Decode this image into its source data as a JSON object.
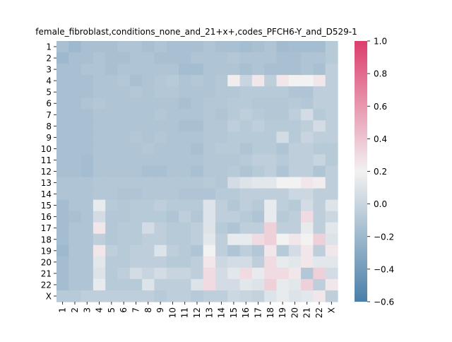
{
  "chart_data": {
    "type": "heatmap",
    "title": "female_fibroblast,conditions_none_and_21+x+,codes_PFCH6-Y_and_D529-1",
    "xlabel": "",
    "ylabel": "",
    "x_categories": [
      "1",
      "2",
      "3",
      "4",
      "5",
      "6",
      "7",
      "8",
      "9",
      "10",
      "11",
      "12",
      "13",
      "14",
      "15",
      "16",
      "17",
      "18",
      "19",
      "20",
      "21",
      "22",
      "X"
    ],
    "y_categories": [
      "1",
      "2",
      "3",
      "4",
      "5",
      "6",
      "7",
      "8",
      "9",
      "10",
      "11",
      "12",
      "13",
      "14",
      "15",
      "16",
      "17",
      "18",
      "19",
      "20",
      "21",
      "22",
      "X"
    ],
    "colorbar": {
      "vmin": -0.6,
      "vmax": 1.0,
      "ticks": [
        1.0,
        0.8,
        0.6,
        0.4,
        0.2,
        0.0,
        -0.2,
        -0.4,
        -0.6
      ],
      "colormap": "diverging blue-white-red",
      "colors": {
        "low": "#4a7fa8",
        "mid": "#f2f2f2",
        "high": "#dc3d6c"
      }
    },
    "values": [
      [
        -0.15,
        -0.2,
        -0.15,
        -0.15,
        -0.15,
        -0.12,
        -0.12,
        -0.15,
        -0.12,
        -0.15,
        -0.15,
        -0.15,
        -0.12,
        -0.15,
        -0.15,
        -0.17,
        -0.15,
        -0.12,
        -0.18,
        -0.17,
        -0.17,
        -0.17,
        -0.08
      ],
      [
        -0.2,
        -0.15,
        -0.15,
        -0.12,
        -0.15,
        -0.15,
        -0.12,
        -0.12,
        -0.15,
        -0.15,
        -0.15,
        -0.12,
        -0.12,
        -0.12,
        -0.1,
        -0.12,
        -0.12,
        -0.12,
        -0.15,
        -0.15,
        -0.12,
        -0.12,
        -0.08
      ],
      [
        -0.15,
        -0.15,
        -0.12,
        -0.12,
        -0.15,
        -0.12,
        -0.12,
        -0.12,
        -0.12,
        -0.12,
        -0.17,
        -0.17,
        -0.12,
        -0.12,
        -0.12,
        -0.15,
        -0.12,
        -0.15,
        -0.15,
        -0.15,
        -0.12,
        -0.15,
        -0.05
      ],
      [
        -0.15,
        -0.15,
        -0.15,
        -0.12,
        -0.12,
        -0.1,
        -0.15,
        -0.12,
        -0.1,
        -0.08,
        -0.12,
        -0.1,
        -0.12,
        -0.1,
        0.22,
        0.0,
        0.25,
        -0.05,
        0.25,
        0.2,
        0.2,
        0.25,
        -0.05
      ],
      [
        -0.15,
        -0.15,
        -0.15,
        -0.12,
        -0.12,
        -0.12,
        -0.1,
        -0.12,
        -0.1,
        -0.1,
        -0.12,
        -0.12,
        -0.12,
        -0.1,
        -0.1,
        -0.08,
        -0.08,
        -0.08,
        -0.08,
        -0.12,
        -0.12,
        -0.05,
        -0.05
      ],
      [
        -0.15,
        -0.15,
        -0.12,
        -0.1,
        -0.12,
        -0.12,
        -0.12,
        -0.12,
        -0.12,
        -0.12,
        -0.15,
        -0.12,
        -0.1,
        -0.1,
        -0.08,
        -0.08,
        -0.1,
        -0.1,
        -0.1,
        -0.08,
        -0.1,
        -0.05,
        -0.05
      ],
      [
        -0.15,
        -0.15,
        -0.15,
        -0.12,
        -0.12,
        -0.12,
        -0.12,
        -0.12,
        -0.1,
        -0.12,
        -0.12,
        -0.12,
        -0.1,
        -0.12,
        -0.08,
        -0.05,
        -0.08,
        -0.1,
        -0.1,
        -0.05,
        0.05,
        -0.08,
        -0.05
      ],
      [
        -0.15,
        -0.15,
        -0.15,
        -0.12,
        -0.12,
        -0.12,
        -0.12,
        -0.12,
        -0.12,
        -0.12,
        -0.15,
        -0.15,
        -0.1,
        -0.1,
        -0.05,
        -0.08,
        -0.05,
        -0.08,
        -0.08,
        -0.08,
        -0.05,
        0.05,
        -0.05
      ],
      [
        -0.15,
        -0.15,
        -0.15,
        -0.12,
        -0.12,
        -0.12,
        -0.1,
        -0.12,
        -0.1,
        -0.12,
        -0.12,
        -0.12,
        -0.1,
        -0.1,
        -0.08,
        -0.08,
        -0.08,
        -0.08,
        0.05,
        -0.08,
        0.0,
        -0.05,
        -0.05
      ],
      [
        -0.15,
        -0.15,
        -0.15,
        -0.12,
        -0.12,
        -0.12,
        -0.12,
        -0.1,
        -0.12,
        -0.12,
        -0.12,
        -0.15,
        -0.1,
        -0.08,
        -0.08,
        -0.12,
        -0.08,
        -0.08,
        -0.12,
        -0.05,
        -0.05,
        -0.08,
        -0.08
      ],
      [
        -0.15,
        -0.15,
        -0.17,
        -0.12,
        -0.12,
        -0.12,
        -0.12,
        -0.12,
        -0.12,
        -0.12,
        -0.12,
        -0.12,
        -0.1,
        -0.1,
        -0.1,
        -0.08,
        -0.05,
        -0.05,
        -0.08,
        -0.05,
        -0.05,
        0.0,
        -0.08
      ],
      [
        -0.15,
        -0.15,
        -0.17,
        -0.12,
        -0.12,
        -0.12,
        -0.12,
        -0.15,
        -0.15,
        -0.12,
        -0.12,
        -0.15,
        -0.1,
        -0.1,
        -0.08,
        -0.12,
        -0.08,
        -0.05,
        -0.12,
        -0.05,
        -0.05,
        -0.12,
        -0.05
      ],
      [
        -0.12,
        -0.12,
        -0.12,
        -0.1,
        -0.1,
        -0.1,
        -0.1,
        -0.1,
        -0.1,
        -0.1,
        -0.1,
        -0.1,
        -0.08,
        -0.1,
        0.05,
        0.1,
        0.12,
        0.12,
        0.2,
        0.2,
        0.25,
        0.22,
        -0.05
      ],
      [
        -0.12,
        -0.12,
        -0.12,
        -0.1,
        -0.1,
        -0.12,
        -0.12,
        -0.1,
        -0.1,
        -0.1,
        -0.12,
        -0.12,
        -0.12,
        -0.08,
        -0.08,
        -0.05,
        -0.05,
        -0.05,
        -0.05,
        0.02,
        0.02,
        -0.05,
        -0.05
      ],
      [
        -0.17,
        -0.12,
        -0.12,
        0.15,
        -0.08,
        -0.1,
        -0.08,
        -0.08,
        -0.05,
        -0.08,
        -0.08,
        -0.08,
        0.1,
        -0.05,
        -0.1,
        -0.05,
        -0.08,
        0.15,
        -0.05,
        -0.08,
        0.05,
        -0.05,
        0.1
      ],
      [
        -0.17,
        -0.15,
        -0.12,
        0.05,
        -0.1,
        -0.1,
        -0.08,
        -0.08,
        -0.08,
        -0.12,
        -0.05,
        -0.1,
        0.1,
        -0.05,
        -0.05,
        -0.08,
        -0.12,
        0.15,
        -0.08,
        -0.05,
        0.3,
        -0.05,
        0.02
      ],
      [
        -0.17,
        -0.12,
        -0.12,
        0.25,
        -0.1,
        -0.08,
        -0.08,
        0.05,
        -0.05,
        -0.08,
        -0.08,
        -0.05,
        0.1,
        -0.08,
        -0.12,
        -0.05,
        -0.05,
        0.35,
        -0.05,
        -0.05,
        0.15,
        -0.05,
        0.12
      ],
      [
        -0.17,
        -0.12,
        -0.12,
        -0.05,
        -0.1,
        -0.08,
        -0.08,
        -0.05,
        -0.05,
        -0.08,
        -0.08,
        -0.05,
        0.12,
        -0.05,
        0.15,
        0.15,
        0.3,
        0.35,
        0.2,
        0.25,
        0.2,
        0.35,
        0.1
      ],
      [
        -0.2,
        -0.12,
        -0.12,
        0.25,
        -0.05,
        -0.08,
        -0.05,
        -0.05,
        0.1,
        -0.05,
        -0.08,
        -0.12,
        0.2,
        -0.05,
        -0.12,
        -0.05,
        -0.1,
        0.25,
        -0.08,
        0.05,
        0.25,
        -0.05,
        0.25
      ],
      [
        -0.17,
        -0.12,
        -0.12,
        0.12,
        -0.08,
        -0.08,
        -0.05,
        -0.05,
        -0.05,
        -0.08,
        -0.08,
        -0.05,
        0.25,
        0.02,
        0.05,
        0.05,
        -0.05,
        0.3,
        0.15,
        0.12,
        0.25,
        0.12,
        0.12
      ],
      [
        -0.17,
        -0.12,
        -0.12,
        0.1,
        -0.08,
        -0.05,
        0.05,
        0.0,
        0.05,
        0.0,
        0.0,
        -0.05,
        0.3,
        0.05,
        0.12,
        0.3,
        0.15,
        0.3,
        0.3,
        0.25,
        -0.1,
        0.35,
        0.05
      ],
      [
        -0.17,
        -0.12,
        -0.12,
        0.15,
        -0.08,
        -0.08,
        -0.08,
        0.1,
        -0.05,
        -0.05,
        -0.05,
        0.1,
        0.3,
        0.05,
        0.05,
        0.12,
        0.1,
        0.35,
        0.15,
        0.12,
        0.35,
        -0.05,
        0.25
      ],
      [
        -0.08,
        -0.08,
        -0.05,
        -0.05,
        -0.05,
        -0.05,
        -0.05,
        -0.05,
        -0.08,
        -0.05,
        -0.05,
        -0.08,
        -0.05,
        -0.05,
        0.02,
        0.0,
        -0.02,
        0.1,
        0.15,
        0.1,
        0.12,
        0.25,
        -0.05
      ]
    ]
  }
}
